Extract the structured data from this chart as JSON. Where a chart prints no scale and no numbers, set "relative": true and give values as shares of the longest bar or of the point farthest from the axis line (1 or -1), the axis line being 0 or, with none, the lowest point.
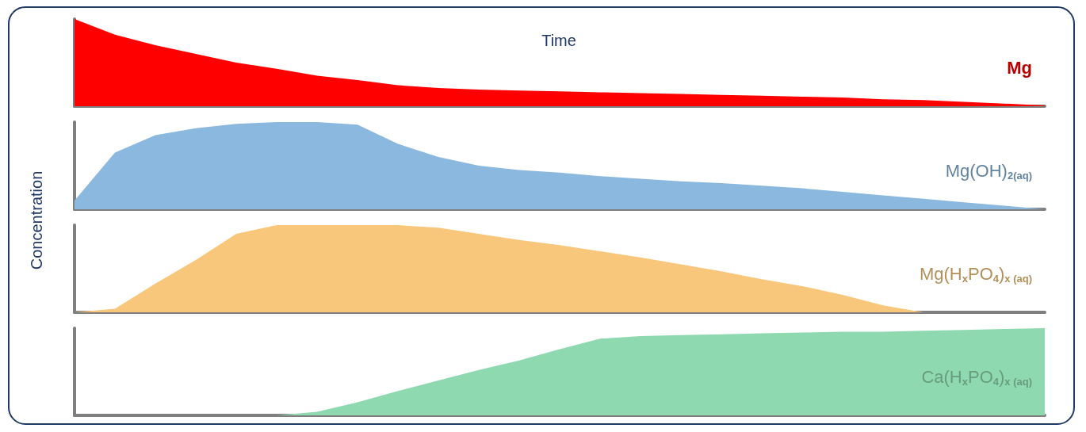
{
  "chart_data": [
    {
      "type": "area",
      "title": "Time",
      "relative": true,
      "tick_labels": false,
      "grid": false,
      "legend": false,
      "categories": [
        null,
        null,
        null,
        null,
        null,
        null,
        null,
        null,
        null,
        null,
        null,
        null,
        null,
        null,
        null,
        null,
        null,
        null,
        null,
        null,
        null,
        null,
        null,
        null,
        null
      ],
      "series": [
        {
          "name": "Mg",
          "color": "#ff0000",
          "values": [
            1,
            0.82,
            0.7,
            0.6,
            0.5,
            0.43,
            0.35,
            0.3,
            0.24,
            0.21,
            0.19,
            0.18,
            0.17,
            0.16,
            0.15,
            0.14,
            0.13,
            0.12,
            0.11,
            0.1,
            0.08,
            0.07,
            0.05,
            0.03,
            0.01
          ]
        }
      ]
    },
    {
      "type": "area",
      "ylabel": "Concentration",
      "relative": true,
      "tick_labels": false,
      "grid": false,
      "legend": false,
      "categories": [
        null,
        null,
        null,
        null,
        null,
        null,
        null,
        null,
        null,
        null,
        null,
        null,
        null,
        null,
        null,
        null,
        null,
        null,
        null,
        null,
        null,
        null,
        null,
        null,
        null
      ],
      "series": [
        {
          "name": "Mg(OH)$_{2(aq)}$",
          "color": "#8ab8df",
          "values": [
            0.1,
            0.65,
            0.85,
            0.93,
            0.98,
            1,
            1,
            0.97,
            0.75,
            0.6,
            0.5,
            0.45,
            0.42,
            0.38,
            0.35,
            0.32,
            0.3,
            0.27,
            0.24,
            0.2,
            0.16,
            0.12,
            0.08,
            0.04,
            0
          ]
        }
      ]
    },
    {
      "type": "area",
      "relative": true,
      "tick_labels": false,
      "grid": false,
      "legend": false,
      "categories": [
        null,
        null,
        null,
        null,
        null,
        null,
        null,
        null,
        null,
        null,
        null,
        null,
        null,
        null,
        null,
        null,
        null,
        null,
        null,
        null,
        null,
        null,
        null,
        null,
        null
      ],
      "series": [
        {
          "name": "Mg(H$_{x}$PO$_{4}$)$_{x (aq)}$",
          "color": "#f9c77c",
          "values": [
            0,
            0.04,
            0.33,
            0.6,
            0.9,
            1,
            1,
            1,
            1,
            0.97,
            0.9,
            0.83,
            0.77,
            0.7,
            0.63,
            0.55,
            0.47,
            0.38,
            0.3,
            0.2,
            0.08,
            0,
            0,
            0,
            0
          ]
        }
      ]
    },
    {
      "type": "area",
      "relative": true,
      "tick_labels": false,
      "grid": false,
      "legend": false,
      "categories": [
        null,
        null,
        null,
        null,
        null,
        null,
        null,
        null,
        null,
        null,
        null,
        null,
        null,
        null,
        null,
        null,
        null,
        null,
        null,
        null,
        null,
        null,
        null,
        null,
        null
      ],
      "series": [
        {
          "name": "Ca(H$_{x}$PO$_{4}$)$_{x (aq)}$",
          "color": "#8fd9b0",
          "values": [
            0,
            0,
            0,
            0,
            0,
            0.0,
            0.04,
            0.15,
            0.28,
            0.4,
            0.52,
            0.63,
            0.76,
            0.88,
            0.91,
            0.92,
            0.93,
            0.94,
            0.95,
            0.96,
            0.96,
            0.97,
            0.98,
            0.99,
            1
          ]
        }
      ]
    }
  ]
}
